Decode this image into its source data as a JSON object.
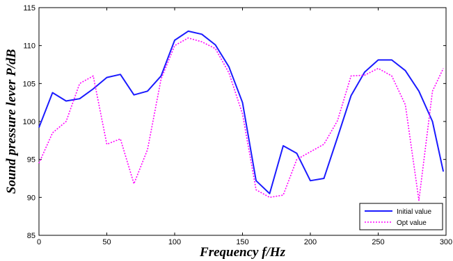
{
  "chart_data": {
    "type": "line",
    "xlabel": "Frequency f/Hz",
    "ylabel": "Sound pressure lever P/dB",
    "xlim": [
      0,
      300
    ],
    "ylim": [
      85,
      115
    ],
    "xticks": [
      0,
      50,
      100,
      150,
      200,
      250,
      300
    ],
    "yticks": [
      85,
      90,
      95,
      100,
      105,
      110,
      115
    ],
    "grid": false,
    "legend_position": "bottom-right",
    "series": [
      {
        "name": "Initial value",
        "color": "#1a1aff",
        "style": "solid",
        "x": [
          0,
          10,
          20,
          30,
          40,
          50,
          60,
          70,
          80,
          90,
          100,
          110,
          120,
          130,
          140,
          150,
          160,
          170,
          180,
          190,
          200,
          210,
          220,
          230,
          240,
          250,
          260,
          270,
          280,
          290,
          298
        ],
        "y": [
          99.2,
          103.8,
          102.7,
          103.0,
          104.3,
          105.8,
          106.2,
          103.5,
          104.0,
          106.0,
          110.7,
          111.9,
          111.5,
          110.1,
          107.2,
          102.5,
          92.2,
          90.5,
          96.8,
          95.8,
          92.2,
          92.5,
          97.9,
          103.4,
          106.5,
          108.1,
          108.1,
          106.7,
          104.0,
          100.0,
          93.4
        ]
      },
      {
        "name": "Opt value",
        "color": "#ff00ff",
        "style": "dotted",
        "x": [
          0,
          10,
          20,
          30,
          40,
          50,
          60,
          70,
          80,
          90,
          100,
          110,
          120,
          130,
          140,
          150,
          160,
          170,
          180,
          190,
          200,
          210,
          220,
          230,
          240,
          250,
          260,
          270,
          280,
          290,
          298
        ],
        "y": [
          94.5,
          98.5,
          100.0,
          105.0,
          106.0,
          97.0,
          97.7,
          91.8,
          96.3,
          105.6,
          110.0,
          111.0,
          110.5,
          109.6,
          106.4,
          101.0,
          91.0,
          90.0,
          90.3,
          95.0,
          96.0,
          97.0,
          100.1,
          106.0,
          106.1,
          107.0,
          106.0,
          102.2,
          89.6,
          104.0,
          107.0
        ]
      }
    ]
  }
}
